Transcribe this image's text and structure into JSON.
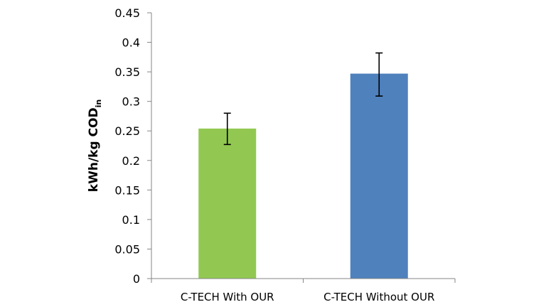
{
  "chart_data": {
    "type": "bar",
    "title": "",
    "xlabel": "",
    "ylabel": "kWh/kg COD",
    "ylabel_subscript": "in",
    "categories": [
      "C-TECH With OUR",
      "C-TECH Without OUR"
    ],
    "values": [
      0.254,
      0.347
    ],
    "error_low": [
      0.227,
      0.309
    ],
    "error_high": [
      0.28,
      0.382
    ],
    "colors": [
      "#92C851",
      "#4F81BD"
    ],
    "ylim": [
      0,
      0.45
    ],
    "yticks": [
      "0",
      "0.05",
      "0.1",
      "0.15",
      "0.2",
      "0.25",
      "0.3",
      "0.35",
      "0.4",
      "0.45"
    ],
    "grid": false,
    "legend": "none"
  }
}
